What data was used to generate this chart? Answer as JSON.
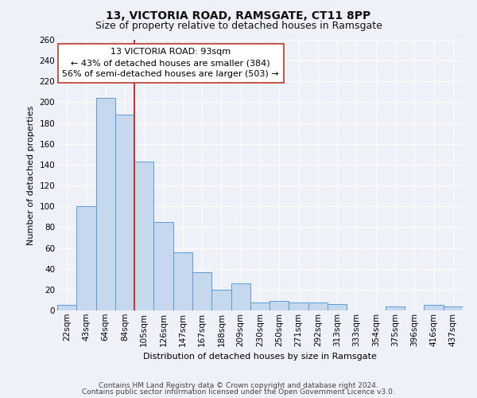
{
  "title": "13, VICTORIA ROAD, RAMSGATE, CT11 8PP",
  "subtitle": "Size of property relative to detached houses in Ramsgate",
  "xlabel": "Distribution of detached houses by size in Ramsgate",
  "ylabel": "Number of detached properties",
  "categories": [
    "22sqm",
    "43sqm",
    "64sqm",
    "84sqm",
    "105sqm",
    "126sqm",
    "147sqm",
    "167sqm",
    "188sqm",
    "209sqm",
    "230sqm",
    "250sqm",
    "271sqm",
    "292sqm",
    "313sqm",
    "333sqm",
    "354sqm",
    "375sqm",
    "396sqm",
    "416sqm",
    "437sqm"
  ],
  "values": [
    5,
    100,
    204,
    188,
    143,
    85,
    56,
    37,
    20,
    26,
    8,
    9,
    8,
    8,
    6,
    0,
    0,
    4,
    0,
    5,
    4
  ],
  "bar_color": "#c5d8ed",
  "bar_edge_color": "#5b9bd5",
  "property_line_x": 3.5,
  "property_line_color": "#c0392b",
  "annotation_text": "13 VICTORIA ROAD: 93sqm\n← 43% of detached houses are smaller (384)\n56% of semi-detached houses are larger (503) →",
  "annotation_box_edge_color": "#c0392b",
  "annotation_box_face_color": "#ffffff",
  "ylim": [
    0,
    260
  ],
  "yticks": [
    0,
    20,
    40,
    60,
    80,
    100,
    120,
    140,
    160,
    180,
    200,
    220,
    240,
    260
  ],
  "footer1": "Contains HM Land Registry data © Crown copyright and database right 2024.",
  "footer2": "Contains public sector information licensed under the Open Government Licence v3.0.",
  "background_color": "#eef2f8",
  "grid_color": "#ffffff",
  "title_fontsize": 10,
  "subtitle_fontsize": 9,
  "axis_fontsize": 8,
  "tick_fontsize": 7.5,
  "annotation_fontsize": 8,
  "footer_fontsize": 6.5
}
